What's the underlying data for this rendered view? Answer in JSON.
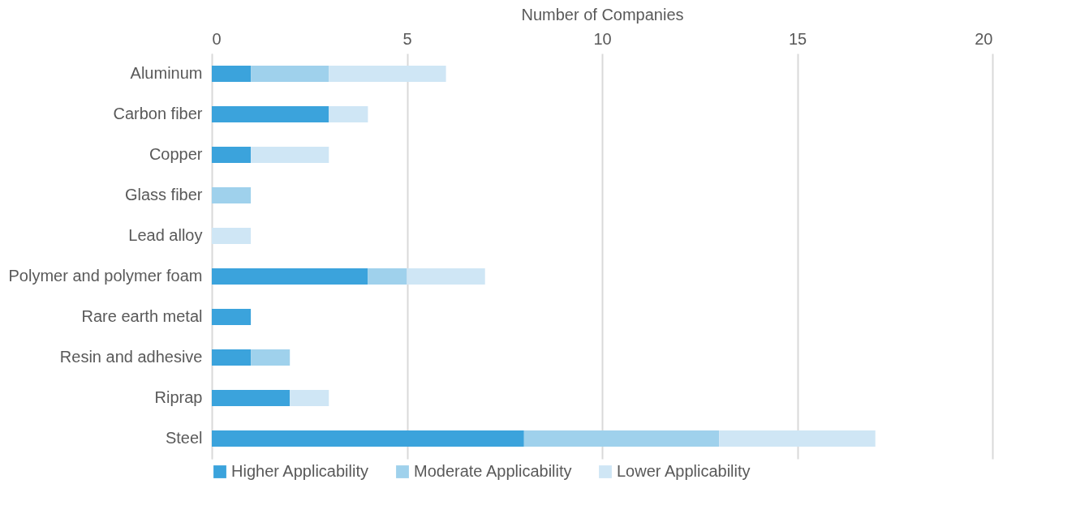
{
  "chart_data": {
    "type": "bar",
    "orientation": "horizontal",
    "stacked": true,
    "xlabel": "Number of Companies",
    "categories": [
      "Aluminum",
      "Carbon fiber",
      "Copper",
      "Glass fiber",
      "Lead alloy",
      "Polymer and polymer foam",
      "Rare earth metal",
      "Resin and adhesive",
      "Riprap",
      "Steel"
    ],
    "series": [
      {
        "name": "Higher Applicability",
        "color": "#3ba3dc",
        "values": [
          1,
          3,
          1,
          0,
          0,
          4,
          1,
          1,
          2,
          8
        ]
      },
      {
        "name": "Moderate Applicability",
        "color": "#9fd1ec",
        "values": [
          2,
          0,
          0,
          1,
          0,
          1,
          0,
          1,
          0,
          5
        ]
      },
      {
        "name": "Lower Applicability",
        "color": "#cfe6f5",
        "values": [
          3,
          1,
          2,
          0,
          1,
          2,
          0,
          0,
          1,
          4
        ]
      }
    ],
    "xlim": [
      0,
      20
    ],
    "xticks": [
      0,
      5,
      10,
      15,
      20
    ],
    "grid": "x",
    "legend": "bottom"
  }
}
